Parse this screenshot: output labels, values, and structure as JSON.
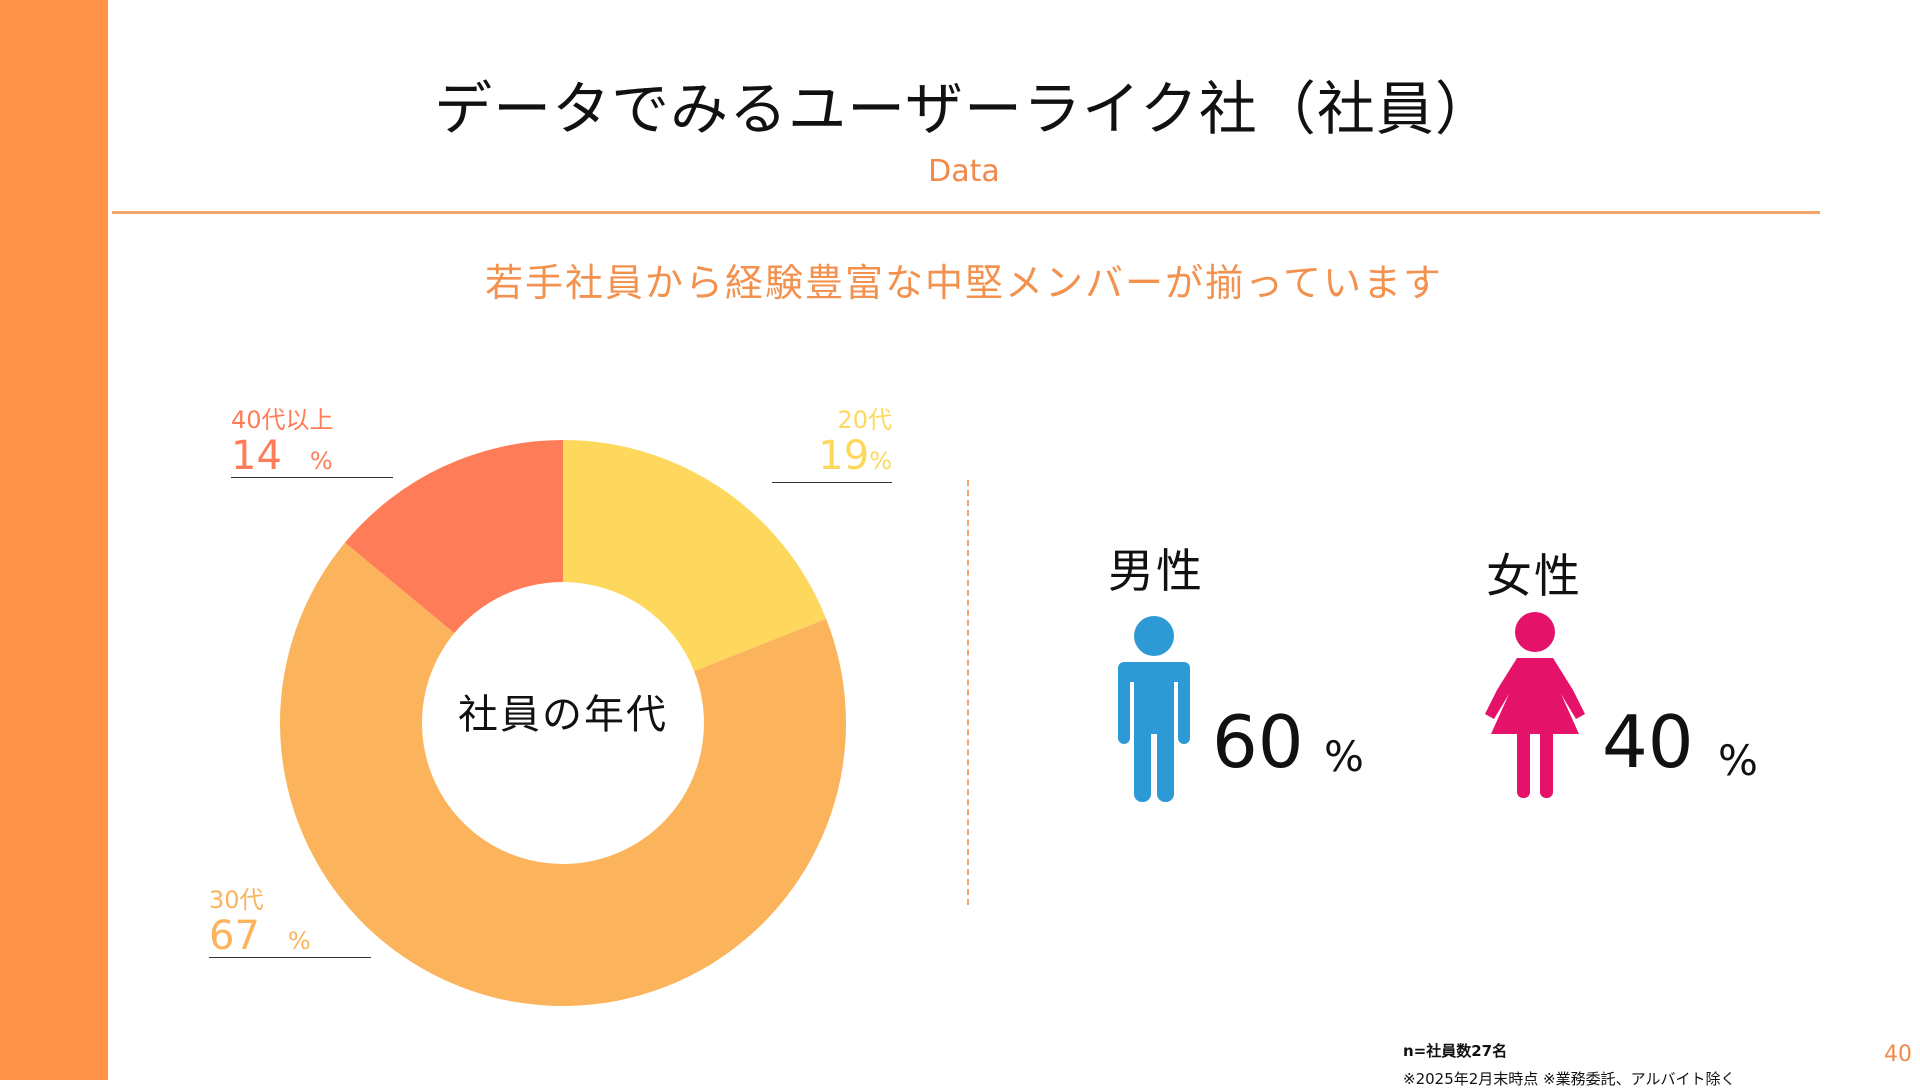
{
  "slide": {
    "title": "データでみるユーザーライク社（社員）",
    "subtitle": "Data",
    "headline": "若手社員から経験豊富な中堅メンバーが揃っています",
    "page_number": "40",
    "footnote_count": "n=社員数27名",
    "footnote_date": "※2025年2月末時点 ※業務委託、アルバイト除く"
  },
  "chart_data": [
    {
      "type": "pie",
      "center_label": "社員の年代",
      "slices": [
        {
          "label": "20代",
          "value": 19,
          "display": "19",
          "unit": "%",
          "color": "#fdd85d"
        },
        {
          "label": "30代",
          "value": 67,
          "display": "67",
          "unit": "%",
          "color": "#fbb35c"
        },
        {
          "label": "40代以上",
          "value": 14,
          "display": "14",
          "unit": "%",
          "color": "#fe7d58"
        }
      ]
    },
    {
      "type": "pictogram",
      "items": [
        {
          "label": "男性",
          "value": 60,
          "display": "60",
          "unit": "%",
          "color": "#2d9ad6",
          "icon": "male-person-icon"
        },
        {
          "label": "女性",
          "value": 40,
          "display": "40",
          "unit": "%",
          "color": "#e5126a",
          "icon": "female-person-icon"
        }
      ]
    }
  ]
}
